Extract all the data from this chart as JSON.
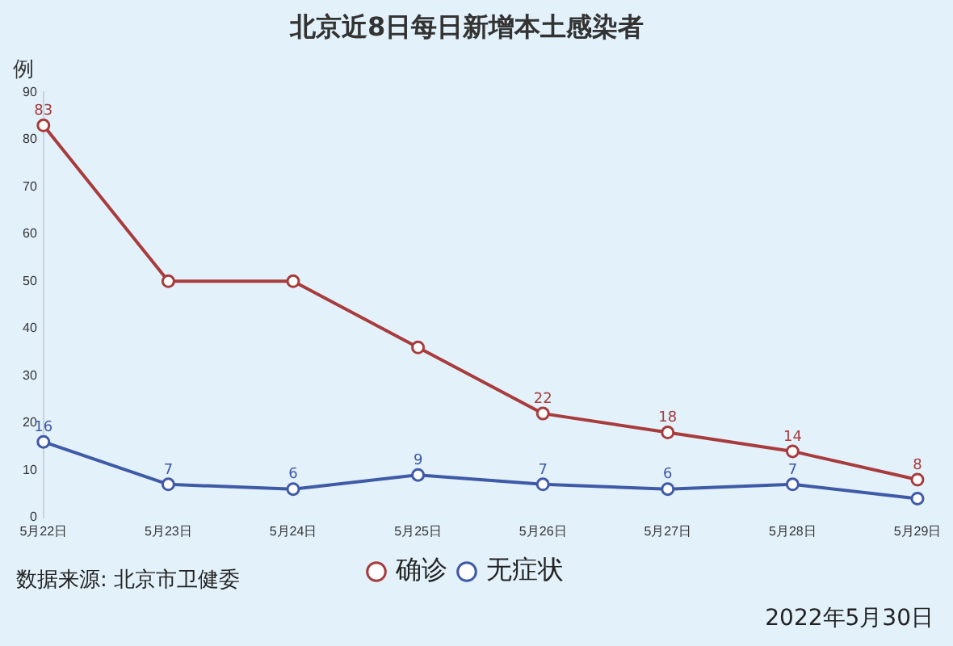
{
  "chart_data": {
    "type": "line",
    "title": "北京近8日每日新增本土感染者",
    "ylabel": "例",
    "categories": [
      "5月22日",
      "5月23日",
      "5月24日",
      "5月25日",
      "5月26日",
      "5月27日",
      "5月28日",
      "5月29日"
    ],
    "series": [
      {
        "name": "确诊",
        "color": "#a83c3c",
        "values": [
          83,
          50,
          50,
          36,
          22,
          18,
          14,
          8
        ],
        "value_labels": [
          "83",
          null,
          null,
          null,
          "22",
          "18",
          "14",
          "8"
        ]
      },
      {
        "name": "无症状",
        "color": "#3f5aa6",
        "values": [
          16,
          7,
          6,
          9,
          7,
          6,
          7,
          4
        ],
        "value_labels": [
          "16",
          "7",
          "6",
          "9",
          "7",
          "6",
          "7",
          null
        ]
      }
    ],
    "ylim": [
      0,
      90
    ],
    "yticks": [
      0,
      10,
      20,
      30,
      40,
      50,
      60,
      70,
      80,
      90
    ],
    "grid": false,
    "legend": "bottom",
    "marker": "circle",
    "line_style": "solid",
    "annotations": [
      "数据来源: 北京市卫健委",
      "2022年5月30日"
    ]
  }
}
